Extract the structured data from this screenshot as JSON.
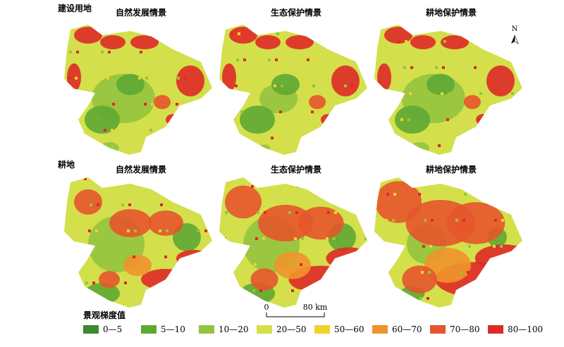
{
  "rows": [
    {
      "label": "建设用地",
      "panels": [
        "自然发展情景",
        "生态保护情景",
        "耕地保护情景"
      ]
    },
    {
      "label": "耕地",
      "panels": [
        "自然发展情景",
        "生态保护情景",
        "耕地保护情景"
      ]
    }
  ],
  "north": "N",
  "scale": {
    "start": "0",
    "end": "80 km"
  },
  "legend": {
    "title": "景观梯度值",
    "items": [
      {
        "label": "0—5",
        "color": "#3b8a30"
      },
      {
        "label": "5—10",
        "color": "#5ea834"
      },
      {
        "label": "10—20",
        "color": "#93c43e"
      },
      {
        "label": "20—50",
        "color": "#d3e04b"
      },
      {
        "label": "50—60",
        "color": "#f2d22c"
      },
      {
        "label": "60—70",
        "color": "#ef932b"
      },
      {
        "label": "70—80",
        "color": "#e6552b"
      },
      {
        "label": "80—100",
        "color": "#df2a28"
      }
    ]
  }
}
